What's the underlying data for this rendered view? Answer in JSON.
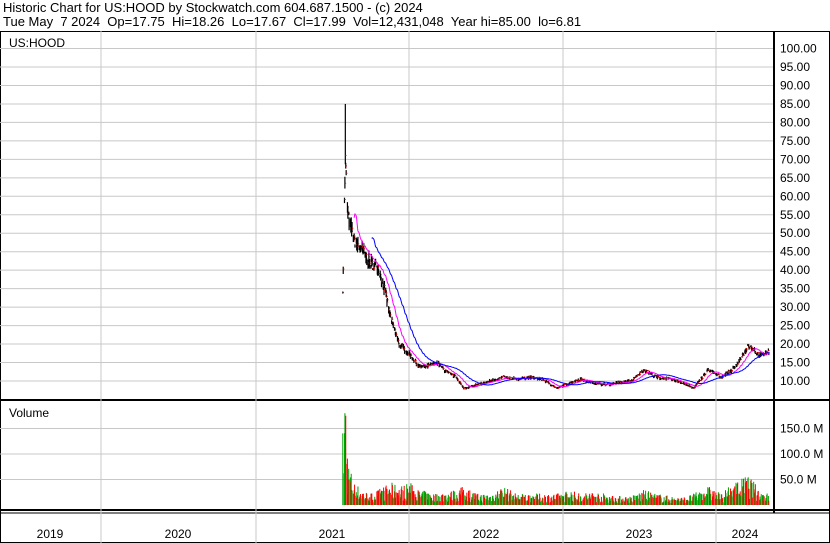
{
  "header": {
    "line1": "Historic Chart for US:HOOD by Stockwatch.com 604.687.1500 - (c) 2024",
    "line2": "Tue May  7 2024  Op=17.75  Hi=18.26  Lo=17.67  Cl=17.99  Vol=12,431,048  Year hi=85.00  lo=6.81"
  },
  "chart_data": [
    {
      "type": "line",
      "title": "US:HOOD",
      "ylim": [
        5,
        100
      ],
      "grid": true,
      "yticks": [
        "100.00",
        "95.00",
        "90.00",
        "85.00",
        "80.00",
        "75.00",
        "70.00",
        "65.00",
        "60.00",
        "55.00",
        "50.00",
        "45.00",
        "40.00",
        "35.00",
        "30.00",
        "25.00",
        "20.00",
        "15.00",
        "10.00"
      ],
      "xticks": [
        "2019",
        "2020",
        "2021",
        "2022",
        "2023",
        "2024"
      ],
      "colors": {
        "price": "#000000",
        "close_tick": "#ff0000",
        "ma_short": "#ff00ff",
        "ma_long": "#0000ff"
      },
      "dates": [
        "2021-07-29",
        "2021-08-04",
        "2021-08-10",
        "2021-08-25",
        "2021-09-15",
        "2021-10-01",
        "2021-10-20",
        "2021-11-05",
        "2021-11-20",
        "2021-12-10",
        "2022-01-05",
        "2022-01-25",
        "2022-02-15",
        "2022-03-10",
        "2022-04-01",
        "2022-04-25",
        "2022-05-12",
        "2022-06-15",
        "2022-07-15",
        "2022-08-15",
        "2022-09-15",
        "2022-10-15",
        "2022-11-15",
        "2022-12-20",
        "2023-01-20",
        "2023-02-15",
        "2023-03-15",
        "2023-04-15",
        "2023-05-15",
        "2023-06-15",
        "2023-07-15",
        "2023-08-15",
        "2023-09-15",
        "2023-10-15",
        "2023-11-10",
        "2023-12-15",
        "2024-01-15",
        "2024-02-15",
        "2024-03-20",
        "2024-04-15",
        "2024-05-07"
      ],
      "close": [
        35,
        70,
        55,
        48,
        45,
        42,
        41,
        35,
        27,
        20,
        17,
        14,
        14,
        15,
        12.5,
        11,
        8,
        9,
        10,
        11,
        10.5,
        11,
        10.5,
        8,
        9.5,
        10.5,
        9.5,
        9,
        9.5,
        10,
        13,
        11,
        10.5,
        9.5,
        8,
        13,
        11,
        13.5,
        19.5,
        17,
        18
      ]
    },
    {
      "type": "bar",
      "title": "Volume",
      "ylim": [
        0,
        180
      ],
      "yticks": [
        "150.0 M",
        "100.0 M",
        "50.0 M"
      ],
      "colors": {
        "up": "#00a000",
        "down": "#ff0000"
      },
      "volume_millions": [
        100,
        175,
        60,
        30,
        20,
        15,
        20,
        25,
        30,
        25,
        30,
        20,
        18,
        15,
        18,
        20,
        25,
        15,
        15,
        25,
        15,
        15,
        15,
        15,
        20,
        15,
        18,
        15,
        12,
        12,
        20,
        15,
        12,
        10,
        15,
        25,
        15,
        30,
        40,
        20,
        15
      ]
    }
  ]
}
